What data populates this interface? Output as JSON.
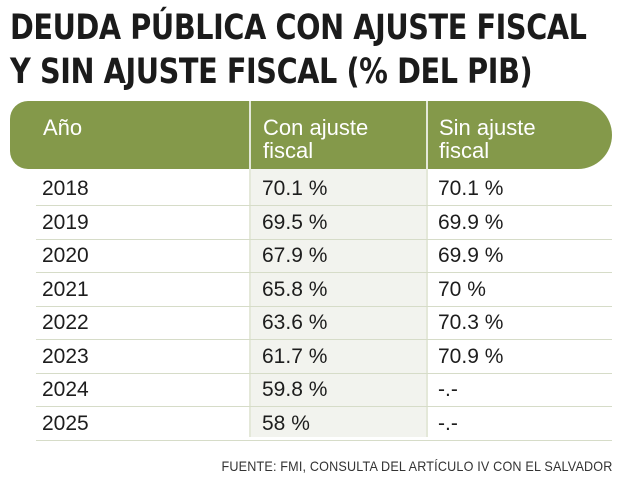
{
  "title_lines": [
    "DEUDA PÚBLICA CON AJUSTE FISCAL",
    "Y SIN AJUSTE FISCAL (% DEL PIB)"
  ],
  "source": "FUENTE: FMI, CONSULTA DEL ARTÍCULO IV CON EL SALVADOR",
  "colors": {
    "header_bg": "#84994a",
    "header_text": "#ffffff",
    "highlight_column_bg": "#f2f3ee",
    "row_divider": "#d6dcc8"
  },
  "chart_data": {
    "type": "table",
    "title": "DEUDA PÚBLICA CON AJUSTE FISCAL Y SIN AJUSTE FISCAL (% DEL PIB)",
    "columns": [
      [
        "Año"
      ],
      [
        "Con ajuste",
        "fiscal"
      ],
      [
        "Sin ajuste",
        "fiscal"
      ]
    ],
    "rows": [
      {
        "year": "2018",
        "con_ajuste": "70.1 %",
        "sin_ajuste": "70.1 %"
      },
      {
        "year": "2019",
        "con_ajuste": "69.5 %",
        "sin_ajuste": "69.9 %"
      },
      {
        "year": "2020",
        "con_ajuste": "67.9 %",
        "sin_ajuste": "69.9 %"
      },
      {
        "year": "2021",
        "con_ajuste": "65.8 %",
        "sin_ajuste": "70 %"
      },
      {
        "year": "2022",
        "con_ajuste": "63.6 %",
        "sin_ajuste": "70.3 %"
      },
      {
        "year": "2023",
        "con_ajuste": "61.7 %",
        "sin_ajuste": "70.9 %"
      },
      {
        "year": "2024",
        "con_ajuste": "59.8 %",
        "sin_ajuste": "-.-"
      },
      {
        "year": "2025",
        "con_ajuste": "58 %",
        "sin_ajuste": "-.-"
      }
    ]
  }
}
